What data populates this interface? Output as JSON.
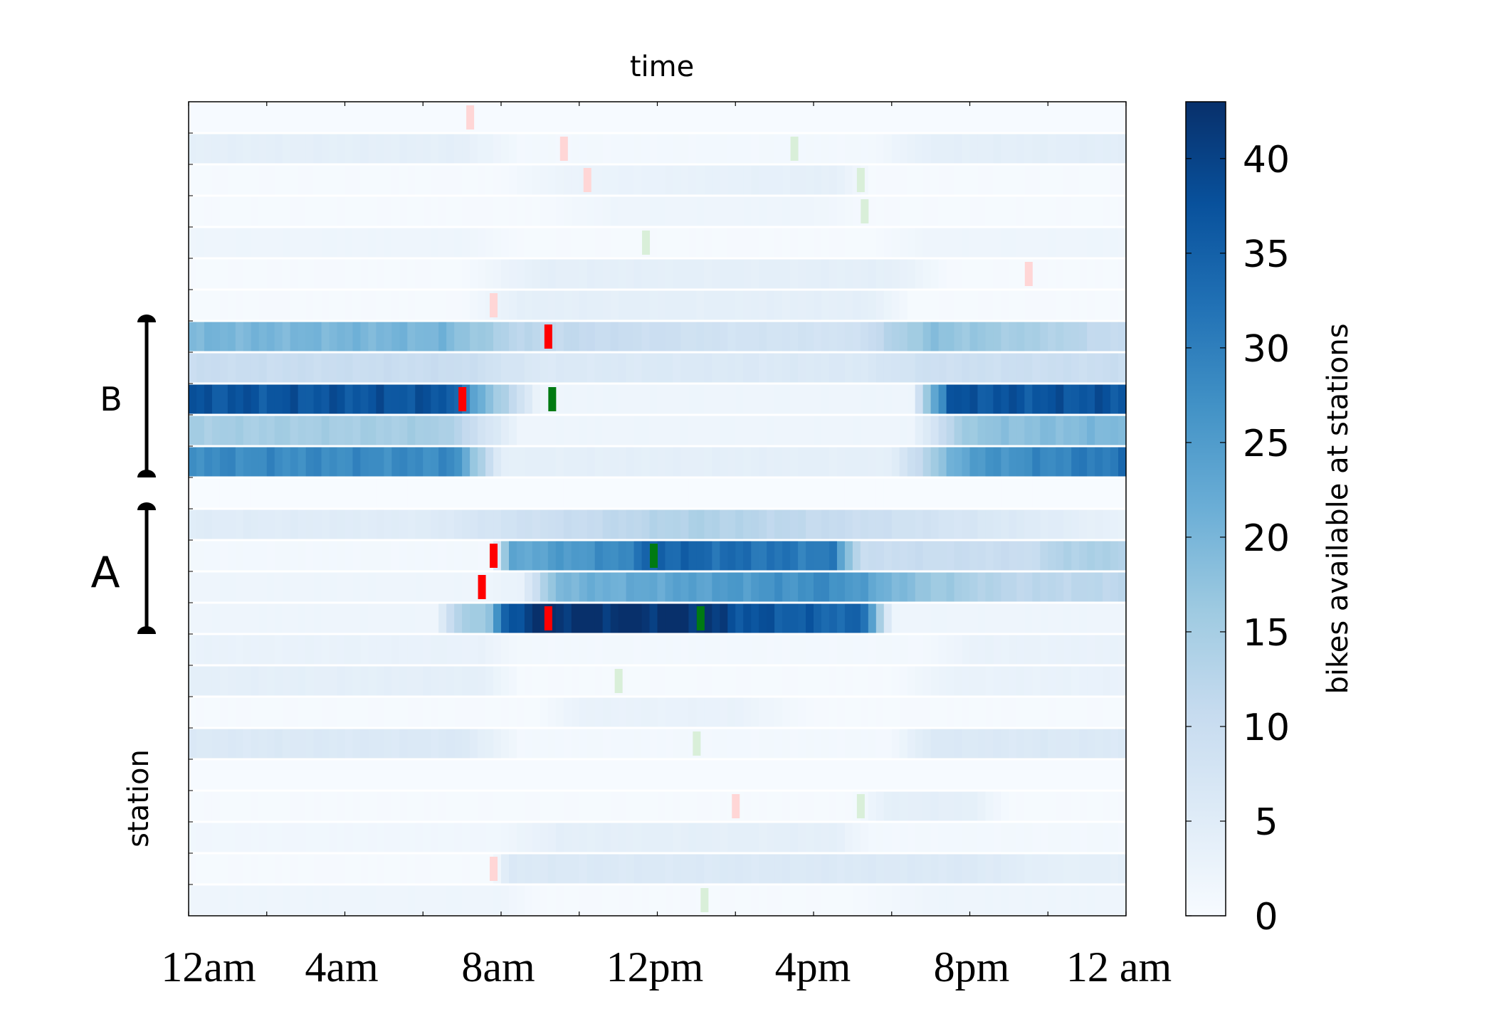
{
  "chart_data": {
    "type": "heatmap",
    "title": "time",
    "ylabel": "station",
    "xlabel": "",
    "x_tick_labels": [
      "12am",
      "4am",
      "8am",
      "12pm",
      "4pm",
      "8pm",
      "12 am"
    ],
    "x_tick_hours": [
      0,
      4,
      8,
      12,
      16,
      20,
      24
    ],
    "xlim_hours": [
      0,
      24
    ],
    "colorbar": {
      "label": "bikes available at stations",
      "range": [
        0,
        43
      ],
      "ticks": [
        "0",
        "5",
        "10",
        "15",
        "20",
        "25",
        "30",
        "35",
        "40"
      ],
      "tick_values": [
        0,
        5,
        10,
        15,
        20,
        25,
        30,
        35,
        40
      ],
      "colormap": "Blues"
    },
    "groups": [
      {
        "label": "B",
        "from_row": 7,
        "to_row": 11
      },
      {
        "label": "A",
        "from_row": 13,
        "to_row": 16
      }
    ],
    "event_colors": {
      "strong_red": "#ff0000",
      "strong_green": "#007a12",
      "faint_red": "#ffd6d6",
      "faint_green": "#d9efd9"
    },
    "rows": [
      {
        "profile": [
          [
            0,
            0.3
          ],
          [
            24,
            0.3
          ]
        ],
        "events": [
          {
            "hour": 7.2,
            "kind": "faint_red"
          }
        ]
      },
      {
        "profile": [
          [
            0,
            4
          ],
          [
            7,
            4
          ],
          [
            8.5,
            1
          ],
          [
            17.5,
            1
          ],
          [
            19,
            4
          ],
          [
            24,
            4.5
          ]
        ],
        "events": [
          {
            "hour": 9.6,
            "kind": "faint_red"
          },
          {
            "hour": 15.5,
            "kind": "faint_green"
          }
        ]
      },
      {
        "profile": [
          [
            0,
            0.5
          ],
          [
            8,
            0.5
          ],
          [
            9.5,
            2.5
          ],
          [
            16.5,
            4
          ],
          [
            17.5,
            0.5
          ],
          [
            24,
            0.5
          ]
        ],
        "events": [
          {
            "hour": 10.2,
            "kind": "faint_red"
          },
          {
            "hour": 17.2,
            "kind": "faint_green"
          }
        ]
      },
      {
        "profile": [
          [
            0,
            0.5
          ],
          [
            9,
            0.5
          ],
          [
            11,
            2
          ],
          [
            16,
            2
          ],
          [
            17.5,
            0.5
          ],
          [
            24,
            0.5
          ]
        ],
        "events": [
          {
            "hour": 17.3,
            "kind": "faint_green"
          }
        ]
      },
      {
        "profile": [
          [
            0,
            2
          ],
          [
            7,
            2
          ],
          [
            8.5,
            0.5
          ],
          [
            17.5,
            0.5
          ],
          [
            19,
            2
          ],
          [
            24,
            2
          ]
        ],
        "events": [
          {
            "hour": 11.7,
            "kind": "faint_green"
          }
        ]
      },
      {
        "profile": [
          [
            0,
            0.5
          ],
          [
            7,
            0.5
          ],
          [
            9,
            4
          ],
          [
            18,
            4
          ],
          [
            19.5,
            0.5
          ],
          [
            24,
            0.5
          ]
        ],
        "events": [
          {
            "hour": 21.5,
            "kind": "faint_red"
          }
        ]
      },
      {
        "profile": [
          [
            0,
            0.5
          ],
          [
            7,
            0.5
          ],
          [
            8.5,
            4
          ],
          [
            17.5,
            4
          ],
          [
            18.5,
            0.5
          ],
          [
            24,
            0.5
          ]
        ],
        "events": [
          {
            "hour": 7.8,
            "kind": "faint_red"
          }
        ]
      },
      {
        "profile": [
          [
            0,
            20
          ],
          [
            6.5,
            20
          ],
          [
            8.5,
            12
          ],
          [
            14,
            8
          ],
          [
            17,
            8
          ],
          [
            19,
            18
          ],
          [
            22,
            14
          ],
          [
            24,
            10
          ]
        ],
        "events": [
          {
            "hour": 9.2,
            "kind": "strong_red"
          }
        ]
      },
      {
        "profile": [
          [
            0,
            10
          ],
          [
            7,
            10
          ],
          [
            9,
            6
          ],
          [
            17,
            6
          ],
          [
            19,
            9
          ],
          [
            24,
            10
          ]
        ],
        "events": []
      },
      {
        "profile": [
          [
            0,
            37
          ],
          [
            6.8,
            37
          ],
          [
            7.2,
            25
          ],
          [
            9,
            2
          ],
          [
            18.5,
            2
          ],
          [
            19.5,
            37
          ],
          [
            24,
            37
          ]
        ],
        "events": [
          {
            "hour": 7.0,
            "kind": "strong_red"
          },
          {
            "hour": 9.3,
            "kind": "strong_green"
          }
        ]
      },
      {
        "profile": [
          [
            0,
            15
          ],
          [
            6.5,
            15
          ],
          [
            8.5,
            2
          ],
          [
            18.5,
            2
          ],
          [
            20,
            17
          ],
          [
            24,
            20
          ]
        ],
        "events": []
      },
      {
        "profile": [
          [
            0,
            28
          ],
          [
            6.8,
            28
          ],
          [
            8,
            4
          ],
          [
            18,
            4
          ],
          [
            20,
            25
          ],
          [
            24,
            32
          ]
        ],
        "events": []
      },
      {
        "profile": [
          [
            0,
            0
          ],
          [
            24,
            0
          ]
        ],
        "events": []
      },
      {
        "profile": [
          [
            0,
            5
          ],
          [
            6,
            5
          ],
          [
            8,
            8
          ],
          [
            13,
            14
          ],
          [
            17,
            10
          ],
          [
            19,
            8
          ],
          [
            24,
            3
          ]
        ],
        "events": []
      },
      {
        "profile": [
          [
            0,
            1
          ],
          [
            7.8,
            1
          ],
          [
            8.2,
            22
          ],
          [
            11,
            28
          ],
          [
            12,
            35
          ],
          [
            16.5,
            30
          ],
          [
            17.2,
            10
          ],
          [
            21.5,
            10
          ],
          [
            22.5,
            14
          ],
          [
            24,
            14
          ]
        ],
        "events": [
          {
            "hour": 7.8,
            "kind": "strong_red"
          },
          {
            "hour": 11.9,
            "kind": "strong_green"
          }
        ]
      },
      {
        "profile": [
          [
            0,
            2
          ],
          [
            7.5,
            2
          ],
          [
            8.5,
            3
          ],
          [
            9.5,
            20
          ],
          [
            16.5,
            28
          ],
          [
            18.5,
            18
          ],
          [
            21,
            12
          ],
          [
            24,
            12
          ]
        ],
        "events": [
          {
            "hour": 7.5,
            "kind": "strong_red"
          }
        ]
      },
      {
        "profile": [
          [
            0,
            2
          ],
          [
            6.3,
            2
          ],
          [
            7,
            15
          ],
          [
            7.8,
            17
          ],
          [
            8,
            35
          ],
          [
            9,
            43
          ],
          [
            13,
            43
          ],
          [
            14,
            38
          ],
          [
            17.3,
            33
          ],
          [
            18,
            2
          ],
          [
            24,
            2
          ]
        ],
        "events": [
          {
            "hour": 9.2,
            "kind": "strong_red"
          },
          {
            "hour": 13.1,
            "kind": "strong_green"
          }
        ]
      },
      {
        "profile": [
          [
            0,
            3
          ],
          [
            7.5,
            3
          ],
          [
            8.5,
            1
          ],
          [
            19,
            1
          ],
          [
            20,
            3
          ],
          [
            24,
            3
          ]
        ],
        "events": []
      },
      {
        "profile": [
          [
            0,
            4
          ],
          [
            7.5,
            4
          ],
          [
            8.5,
            0.5
          ],
          [
            18,
            0.5
          ],
          [
            19.5,
            3
          ],
          [
            24,
            3
          ]
        ],
        "events": [
          {
            "hour": 11.0,
            "kind": "faint_green"
          }
        ]
      },
      {
        "profile": [
          [
            0,
            0.5
          ],
          [
            9,
            0.5
          ],
          [
            10,
            3
          ],
          [
            14,
            3
          ],
          [
            16,
            0.5
          ],
          [
            24,
            0.5
          ]
        ],
        "events": []
      },
      {
        "profile": [
          [
            0,
            6
          ],
          [
            7,
            6
          ],
          [
            8.5,
            1
          ],
          [
            18,
            1
          ],
          [
            19,
            6
          ],
          [
            24,
            6
          ]
        ],
        "events": [
          {
            "hour": 13.0,
            "kind": "faint_green"
          }
        ]
      },
      {
        "profile": [
          [
            0,
            0.3
          ],
          [
            24,
            0.3
          ]
        ],
        "events": []
      },
      {
        "profile": [
          [
            0,
            0.5
          ],
          [
            17,
            0.5
          ],
          [
            18,
            4
          ],
          [
            20,
            4
          ],
          [
            21,
            0.5
          ],
          [
            24,
            0.5
          ]
        ],
        "events": [
          {
            "hour": 14.0,
            "kind": "faint_red"
          },
          {
            "hour": 17.2,
            "kind": "faint_green"
          }
        ]
      },
      {
        "profile": [
          [
            0,
            1.5
          ],
          [
            8,
            1.5
          ],
          [
            9.5,
            4
          ],
          [
            16.5,
            4
          ],
          [
            17.5,
            1
          ],
          [
            24,
            1
          ]
        ],
        "events": []
      },
      {
        "profile": [
          [
            0,
            0.5
          ],
          [
            7.8,
            0.5
          ],
          [
            8.2,
            6
          ],
          [
            20,
            6
          ],
          [
            22,
            4
          ],
          [
            24,
            4
          ]
        ],
        "events": [
          {
            "hour": 7.8,
            "kind": "faint_red"
          }
        ]
      },
      {
        "profile": [
          [
            0,
            2
          ],
          [
            8,
            2
          ],
          [
            9,
            0.5
          ],
          [
            17,
            0.5
          ],
          [
            19,
            2
          ],
          [
            24,
            2
          ]
        ],
        "events": [
          {
            "hour": 13.2,
            "kind": "faint_green"
          }
        ]
      }
    ]
  }
}
